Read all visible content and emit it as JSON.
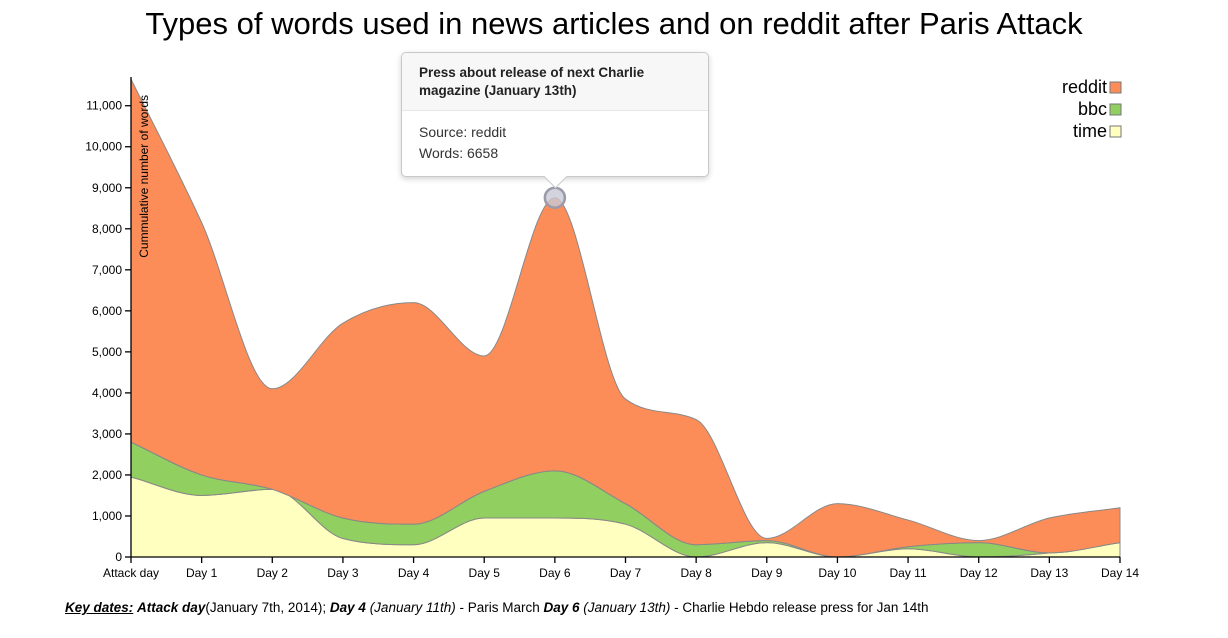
{
  "chart_data": {
    "type": "area",
    "stacked": true,
    "curve": "smooth",
    "title": "Types of words used in news articles and on reddit after Paris Attack",
    "ylabel": "Cummulative number of words",
    "xlabel": "",
    "ylim": [
      0,
      11700
    ],
    "yticks": [
      0,
      1000,
      2000,
      3000,
      4000,
      5000,
      6000,
      7000,
      8000,
      9000,
      10000,
      11000
    ],
    "ytick_labels": [
      "0",
      "1,000",
      "2,000",
      "3,000",
      "4,000",
      "5,000",
      "6,000",
      "7,000",
      "8,000",
      "9,000",
      "10,000",
      "11,000"
    ],
    "categories": [
      "Attack day",
      "Day 1",
      "Day 2",
      "Day 3",
      "Day 4",
      "Day 5",
      "Day 6",
      "Day 7",
      "Day 8",
      "Day 9",
      "Day 10",
      "Day 11",
      "Day 12",
      "Day 13",
      "Day 14"
    ],
    "series": [
      {
        "name": "time",
        "color": "#ffffbf",
        "values": [
          1950,
          1500,
          1650,
          450,
          300,
          950,
          950,
          800,
          0,
          350,
          0,
          200,
          0,
          100,
          350
        ]
      },
      {
        "name": "bbc",
        "color": "#91cf60",
        "values": [
          850,
          500,
          0,
          500,
          500,
          650,
          1150,
          500,
          300,
          50,
          0,
          50,
          350,
          0,
          0
        ]
      },
      {
        "name": "reddit",
        "color": "#fc8d59",
        "values": [
          8850,
          6150,
          2450,
          4750,
          5400,
          3300,
          6658,
          2550,
          3050,
          50,
          1300,
          650,
          50,
          850,
          850
        ]
      }
    ],
    "legend": {
      "position": "top-right",
      "order": [
        "reddit",
        "bbc",
        "time"
      ]
    },
    "grid": false,
    "highlight": {
      "series": "reddit",
      "category": "Day 6"
    }
  },
  "tooltip": {
    "title": "Press about release of next Charlie magazine (January 13th)",
    "source": "Source: reddit",
    "words": "Words: 6658"
  },
  "key_dates": {
    "heading": "Key dates:",
    "attack_label": "Attack day",
    "attack_text": "(January 7th, 2014); ",
    "day4_label": "Day 4",
    "day4_date": " (January 11th)",
    "day4_text": " - Paris March ",
    "day6_label": "Day 6",
    "day6_date": " (January 13th)",
    "day6_text": " - Charlie Hebdo release press for Jan 14th"
  }
}
